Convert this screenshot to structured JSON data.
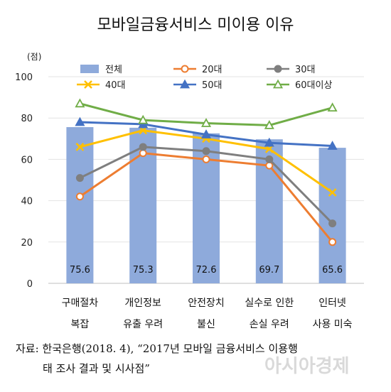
{
  "chart_data": {
    "type": "bar",
    "title": "모바일금융서비스 미이용 이유",
    "ylabel": "(점)",
    "ylim": [
      0,
      100
    ],
    "yticks": [
      0,
      20,
      40,
      60,
      80,
      100
    ],
    "categories": [
      [
        "구매절차",
        "복잡"
      ],
      [
        "개인정보",
        "유출 우려"
      ],
      [
        "안전장치",
        "불신"
      ],
      [
        "실수로 인한",
        "손실 우려"
      ],
      [
        "인터넷",
        "사용 미숙"
      ]
    ],
    "series": [
      {
        "name": "전체",
        "kind": "bar",
        "color": "#8eaadb",
        "values": [
          75.6,
          75.3,
          72.6,
          69.7,
          65.6
        ]
      },
      {
        "name": "20대",
        "kind": "line",
        "color": "#ed7d31",
        "marker": "circle",
        "values": [
          42,
          63,
          60,
          57,
          20
        ]
      },
      {
        "name": "30대",
        "kind": "line",
        "color": "#7f7f7f",
        "marker": "circle",
        "values": [
          51,
          66,
          64,
          60,
          29
        ]
      },
      {
        "name": "40대",
        "kind": "line",
        "color": "#ffc000",
        "marker": "x",
        "values": [
          66,
          74,
          70,
          65,
          44
        ]
      },
      {
        "name": "50대",
        "kind": "line",
        "color": "#4472c4",
        "marker": "triangle",
        "values": [
          78,
          77,
          72,
          68,
          66.5
        ]
      },
      {
        "name": "60대이상",
        "kind": "line",
        "color": "#70ad47",
        "marker": "triangle-open",
        "values": [
          87,
          79,
          77.5,
          76.5,
          85
        ]
      }
    ],
    "bar_labels": [
      "75.6",
      "75.3",
      "72.6",
      "69.7",
      "65.6"
    ],
    "legend": "top"
  },
  "source": {
    "line1": "자료: 한국은행(2018. 4), “2017년 모바일 금융서비스 이용행",
    "line2": "태 조사 결과 및 시사점”"
  },
  "watermark": "아시아경제"
}
